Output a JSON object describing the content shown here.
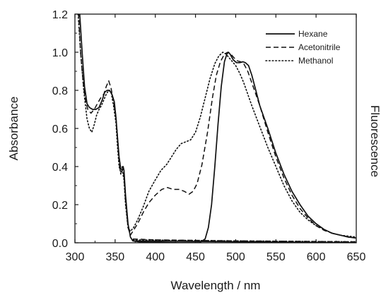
{
  "chart_data": {
    "type": "line",
    "xlabel": "Wavelength / nm",
    "ylabel": "Absorbance",
    "y2label": "Fluorescence",
    "xlim": [
      300,
      650
    ],
    "ylim": [
      0,
      1.2
    ],
    "x_ticks": [
      300,
      350,
      400,
      450,
      500,
      550,
      600,
      650
    ],
    "y_ticks": [
      0.0,
      0.2,
      0.4,
      0.6,
      0.8,
      1.0,
      1.2
    ],
    "y_tick_labels": [
      "0.0",
      "0.2",
      "0.4",
      "0.6",
      "0.8",
      "1.0",
      "1.2"
    ],
    "grid": false,
    "legend_position": "top-right",
    "series": [
      {
        "name": "Hexane",
        "style": "solid",
        "points": [
          [
            303,
            1.25
          ],
          [
            306,
            1.2
          ],
          [
            309,
            1.0
          ],
          [
            312,
            0.82
          ],
          [
            315,
            0.73
          ],
          [
            318,
            0.71
          ],
          [
            322,
            0.7
          ],
          [
            326,
            0.7
          ],
          [
            330,
            0.71
          ],
          [
            334,
            0.75
          ],
          [
            337,
            0.79
          ],
          [
            340,
            0.8
          ],
          [
            343,
            0.8
          ],
          [
            346,
            0.78
          ],
          [
            349,
            0.74
          ],
          [
            351,
            0.66
          ],
          [
            353,
            0.55
          ],
          [
            355,
            0.45
          ],
          [
            357,
            0.39
          ],
          [
            359,
            0.38
          ],
          [
            360,
            0.4
          ],
          [
            361,
            0.38
          ],
          [
            363,
            0.25
          ],
          [
            366,
            0.1
          ],
          [
            369,
            0.03
          ],
          [
            372,
            0.01
          ],
          [
            380,
            0.005
          ],
          [
            400,
            0.003
          ],
          [
            430,
            0.0
          ],
          [
            455,
            0.0
          ],
          [
            462,
            0.02
          ],
          [
            466,
            0.08
          ],
          [
            470,
            0.2
          ],
          [
            474,
            0.4
          ],
          [
            478,
            0.62
          ],
          [
            482,
            0.82
          ],
          [
            486,
            0.95
          ],
          [
            489,
            0.99
          ],
          [
            491,
            1.0
          ],
          [
            493,
            0.99
          ],
          [
            497,
            0.96
          ],
          [
            501,
            0.945
          ],
          [
            505,
            0.945
          ],
          [
            509,
            0.95
          ],
          [
            512,
            0.945
          ],
          [
            516,
            0.93
          ],
          [
            520,
            0.88
          ],
          [
            525,
            0.8
          ],
          [
            530,
            0.72
          ],
          [
            540,
            0.6
          ],
          [
            550,
            0.47
          ],
          [
            560,
            0.36
          ],
          [
            570,
            0.27
          ],
          [
            580,
            0.2
          ],
          [
            590,
            0.14
          ],
          [
            600,
            0.1
          ],
          [
            610,
            0.07
          ],
          [
            620,
            0.05
          ],
          [
            630,
            0.04
          ],
          [
            640,
            0.03
          ],
          [
            650,
            0.025
          ]
        ],
        "baseline": [
          [
            372,
            0.01
          ],
          [
            500,
            0.005
          ],
          [
            650,
            0.0
          ]
        ]
      },
      {
        "name": "Acetonitrile",
        "style": "dashed",
        "points": [
          [
            304,
            1.25
          ],
          [
            307,
            1.0
          ],
          [
            310,
            0.85
          ],
          [
            313,
            0.75
          ],
          [
            316,
            0.7
          ],
          [
            320,
            0.68
          ],
          [
            324,
            0.7
          ],
          [
            328,
            0.73
          ],
          [
            332,
            0.76
          ],
          [
            336,
            0.78
          ],
          [
            339,
            0.82
          ],
          [
            342,
            0.85
          ],
          [
            345,
            0.81
          ],
          [
            348,
            0.74
          ],
          [
            351,
            0.66
          ],
          [
            353,
            0.55
          ],
          [
            355,
            0.42
          ],
          [
            357,
            0.36
          ],
          [
            359,
            0.4
          ],
          [
            361,
            0.35
          ],
          [
            363,
            0.22
          ],
          [
            366,
            0.08
          ],
          [
            369,
            0.04
          ],
          [
            372,
            0.06
          ],
          [
            378,
            0.1
          ],
          [
            385,
            0.16
          ],
          [
            392,
            0.21
          ],
          [
            400,
            0.25
          ],
          [
            408,
            0.28
          ],
          [
            415,
            0.29
          ],
          [
            422,
            0.28
          ],
          [
            430,
            0.28
          ],
          [
            436,
            0.27
          ],
          [
            442,
            0.255
          ],
          [
            447,
            0.27
          ],
          [
            452,
            0.31
          ],
          [
            458,
            0.41
          ],
          [
            465,
            0.58
          ],
          [
            471,
            0.76
          ],
          [
            476,
            0.88
          ],
          [
            481,
            0.95
          ],
          [
            486,
            0.99
          ],
          [
            490,
            1.0
          ],
          [
            494,
            0.99
          ],
          [
            498,
            0.97
          ],
          [
            502,
            0.955
          ],
          [
            506,
            0.95
          ],
          [
            510,
            0.94
          ],
          [
            515,
            0.9
          ],
          [
            520,
            0.84
          ],
          [
            525,
            0.78
          ],
          [
            530,
            0.72
          ],
          [
            540,
            0.58
          ],
          [
            550,
            0.45
          ],
          [
            560,
            0.34
          ],
          [
            570,
            0.25
          ],
          [
            580,
            0.18
          ],
          [
            590,
            0.13
          ],
          [
            600,
            0.09
          ],
          [
            610,
            0.065
          ],
          [
            620,
            0.05
          ],
          [
            630,
            0.04
          ],
          [
            640,
            0.03
          ],
          [
            650,
            0.025
          ]
        ],
        "baseline": [
          [
            372,
            0.02
          ],
          [
            400,
            0.015
          ],
          [
            500,
            0.01
          ],
          [
            650,
            0.005
          ]
        ]
      },
      {
        "name": "Methanol",
        "style": "dotted",
        "points": [
          [
            301,
            1.25
          ],
          [
            304,
            1.2
          ],
          [
            307,
            1.0
          ],
          [
            311,
            0.8
          ],
          [
            315,
            0.65
          ],
          [
            318,
            0.6
          ],
          [
            321,
            0.58
          ],
          [
            324,
            0.62
          ],
          [
            327,
            0.67
          ],
          [
            330,
            0.7
          ],
          [
            333,
            0.72
          ],
          [
            336,
            0.75
          ],
          [
            339,
            0.78
          ],
          [
            342,
            0.8
          ],
          [
            345,
            0.79
          ],
          [
            348,
            0.72
          ],
          [
            351,
            0.63
          ],
          [
            353,
            0.5
          ],
          [
            355,
            0.4
          ],
          [
            357,
            0.37
          ],
          [
            359,
            0.38
          ],
          [
            361,
            0.33
          ],
          [
            363,
            0.2
          ],
          [
            366,
            0.08
          ],
          [
            369,
            0.06
          ],
          [
            373,
            0.08
          ],
          [
            378,
            0.12
          ],
          [
            385,
            0.19
          ],
          [
            392,
            0.27
          ],
          [
            400,
            0.33
          ],
          [
            407,
            0.38
          ],
          [
            414,
            0.41
          ],
          [
            420,
            0.45
          ],
          [
            426,
            0.49
          ],
          [
            432,
            0.52
          ],
          [
            438,
            0.53
          ],
          [
            444,
            0.54
          ],
          [
            450,
            0.58
          ],
          [
            456,
            0.66
          ],
          [
            462,
            0.76
          ],
          [
            468,
            0.86
          ],
          [
            474,
            0.94
          ],
          [
            479,
            0.98
          ],
          [
            484,
            1.0
          ],
          [
            488,
            0.99
          ],
          [
            492,
            0.97
          ],
          [
            496,
            0.95
          ],
          [
            500,
            0.93
          ],
          [
            505,
            0.89
          ],
          [
            510,
            0.84
          ],
          [
            515,
            0.78
          ],
          [
            520,
            0.72
          ],
          [
            530,
            0.61
          ],
          [
            540,
            0.5
          ],
          [
            550,
            0.4
          ],
          [
            560,
            0.3
          ],
          [
            570,
            0.22
          ],
          [
            580,
            0.16
          ],
          [
            590,
            0.12
          ],
          [
            600,
            0.09
          ],
          [
            610,
            0.07
          ],
          [
            620,
            0.05
          ],
          [
            630,
            0.04
          ],
          [
            640,
            0.035
          ],
          [
            650,
            0.03
          ]
        ],
        "baseline": [
          [
            372,
            0.015
          ],
          [
            500,
            0.01
          ],
          [
            650,
            0.005
          ]
        ]
      }
    ]
  }
}
